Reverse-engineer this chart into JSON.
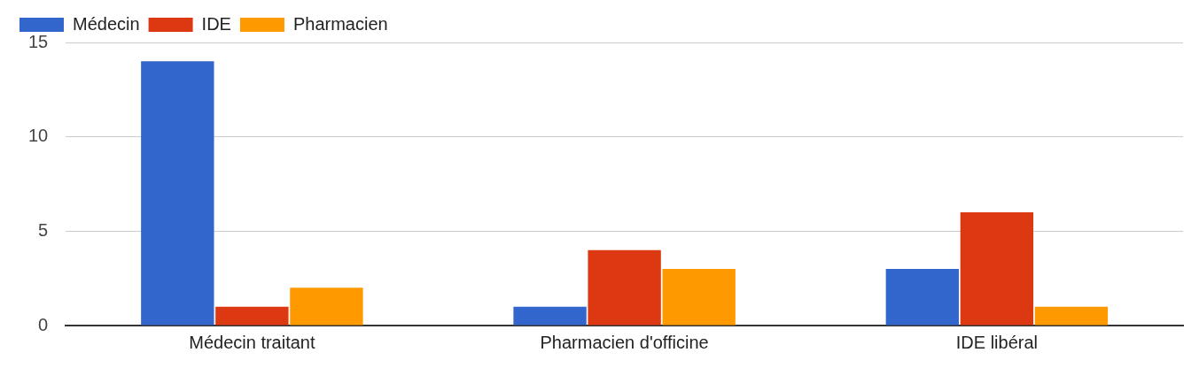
{
  "chart_data": {
    "type": "bar",
    "categories": [
      "Médecin traitant",
      "Pharmacien d'officine",
      "IDE libéral"
    ],
    "series": [
      {
        "name": "Médecin",
        "color": "#3366cc",
        "values": [
          14,
          1,
          3
        ]
      },
      {
        "name": "IDE",
        "color": "#dc3912",
        "values": [
          1,
          4,
          6
        ]
      },
      {
        "name": "Pharmacien",
        "color": "#ff9900",
        "values": [
          2,
          3,
          1
        ]
      }
    ],
    "ylim": [
      0,
      15
    ],
    "yticks": [
      0,
      5,
      10,
      15
    ],
    "grid": "y",
    "legend": "top left"
  }
}
